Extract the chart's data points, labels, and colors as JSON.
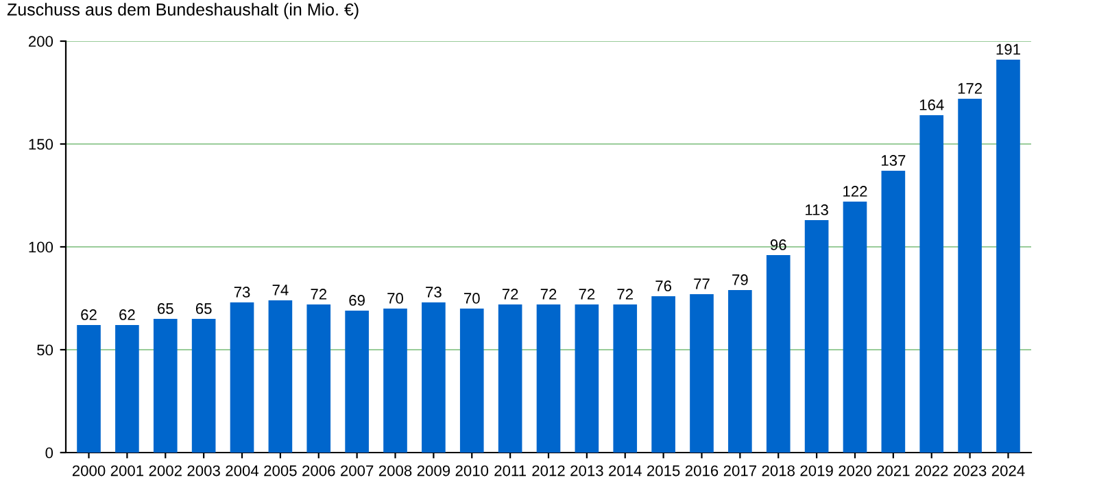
{
  "chart_data": {
    "type": "bar",
    "title": "Zuschuss aus dem Bundeshaushalt (in Mio. €)",
    "categories": [
      "2000",
      "2001",
      "2002",
      "2003",
      "2004",
      "2005",
      "2006",
      "2007",
      "2008",
      "2009",
      "2010",
      "2011",
      "2012",
      "2013",
      "2014",
      "2015",
      "2016",
      "2017",
      "2018",
      "2019",
      "2020",
      "2021",
      "2022",
      "2023",
      "2024"
    ],
    "values": [
      62,
      62,
      65,
      65,
      73,
      74,
      72,
      69,
      70,
      73,
      70,
      72,
      72,
      72,
      72,
      76,
      77,
      79,
      96,
      113,
      122,
      137,
      164,
      172,
      191
    ],
    "color": "#0066cc",
    "ylim": [
      0,
      200
    ],
    "yticks": [
      0,
      50,
      100,
      150,
      200
    ],
    "grid": "y",
    "data_labels": true
  }
}
